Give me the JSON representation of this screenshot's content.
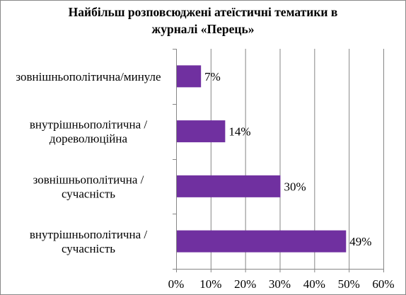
{
  "chart_data": {
    "type": "bar",
    "orientation": "horizontal",
    "title_lines": [
      "Найбільш розповсюджені атеїстичні тематики в",
      "журналі «Перець»"
    ],
    "categories": [
      [
        "зовнішньополітична/минуле"
      ],
      [
        "внутрішньополітична /",
        "дореволюційна"
      ],
      [
        "зовнішньополітична /",
        "сучасність"
      ],
      [
        "внутрішньополітична /",
        "сучасність"
      ]
    ],
    "values": [
      7,
      14,
      30,
      49
    ],
    "data_labels": [
      "7%",
      "14%",
      "30%",
      "49%"
    ],
    "xlim": [
      0,
      60
    ],
    "x_ticks": [
      0,
      10,
      20,
      30,
      40,
      50,
      60
    ],
    "x_tick_labels": [
      "0%",
      "10%",
      "20%",
      "30%",
      "40%",
      "50%",
      "60%"
    ],
    "grid": true,
    "legend": "none",
    "bar_color": "#7030A0",
    "grid_color": "#868686"
  }
}
